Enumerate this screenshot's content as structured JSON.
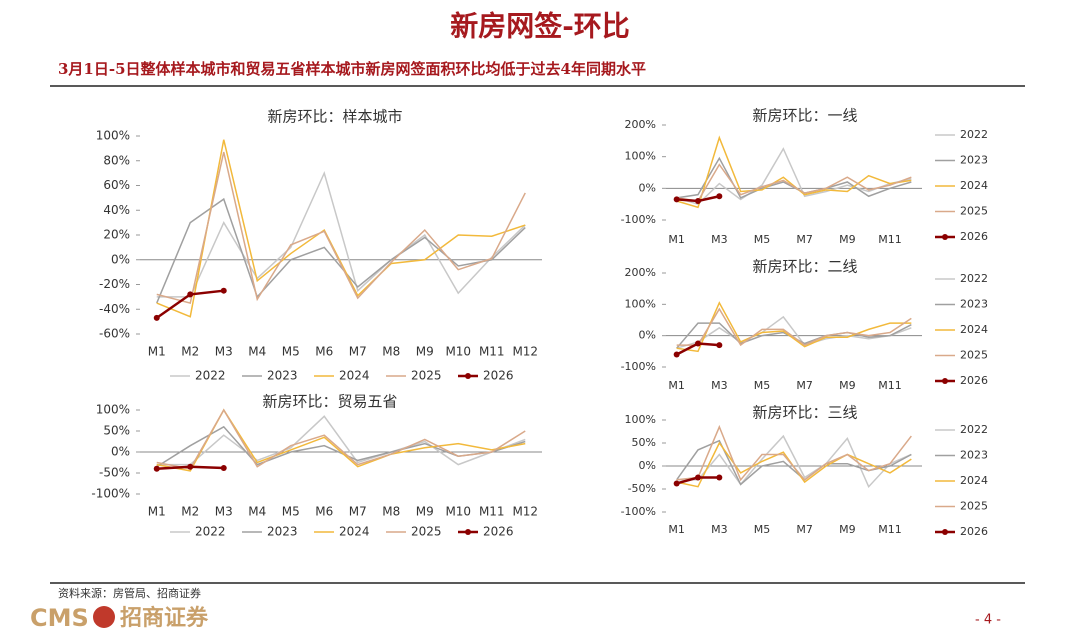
{
  "header": {
    "title": "新房网签-环比",
    "subtitle": "3月1日-5日整体样本城市和贸易五省样本城市新房网签面积环比均低于过去4年同期水平"
  },
  "footer": {
    "source": "资料来源：房管局、招商证券",
    "logo_text": "CMS",
    "logo_name": "招商证券",
    "page": "- 4 -"
  },
  "chart_data": [
    {
      "type": "line",
      "title": "新房环比：样本城市",
      "legend": "bottom",
      "categories": [
        "M1",
        "M2",
        "M3",
        "M4",
        "M5",
        "M6",
        "M7",
        "M8",
        "M9",
        "M10",
        "M11",
        "M12"
      ],
      "ylim": [
        -60,
        100
      ],
      "yticks": [
        {
          "value": -60,
          "label": "-60%"
        },
        {
          "value": -40,
          "label": "-40%"
        },
        {
          "value": -20,
          "label": "-20%"
        },
        {
          "value": 0,
          "label": "0%"
        },
        {
          "value": 20,
          "label": "20%"
        },
        {
          "value": 40,
          "label": "40%"
        },
        {
          "value": 60,
          "label": "60%"
        },
        {
          "value": 80,
          "label": "80%"
        },
        {
          "value": 100,
          "label": "100%"
        }
      ],
      "series": [
        {
          "name": "2022",
          "color": "#c8c8c8",
          "values": [
            -30,
            -30,
            30,
            -15,
            10,
            70,
            -25,
            0,
            20,
            -27,
            2,
            28
          ]
        },
        {
          "name": "2023",
          "color": "#a0a0a0",
          "values": [
            -35,
            30,
            49,
            -30,
            0,
            10,
            -22,
            0,
            18,
            -5,
            0,
            26
          ]
        },
        {
          "name": "2024",
          "color": "#f2b93b",
          "values": [
            -35,
            -46,
            97,
            -17,
            5,
            24,
            -29,
            -3,
            0,
            20,
            19,
            28
          ]
        },
        {
          "name": "2025",
          "color": "#d9a98a",
          "values": [
            -28,
            -35,
            87,
            -32,
            12,
            23,
            -31,
            -2,
            24,
            -8,
            1,
            54
          ]
        },
        {
          "name": "2026",
          "color": "#8b0000",
          "values": [
            -47,
            -28,
            -25,
            null,
            null,
            null,
            null,
            null,
            null,
            null,
            null,
            null
          ]
        }
      ]
    },
    {
      "type": "line",
      "title": "新房环比：一线",
      "legend": "right",
      "categories": [
        "M1",
        null,
        "M3",
        null,
        "M5",
        null,
        "M7",
        null,
        "M9",
        null,
        "M11",
        null
      ],
      "ylim": [
        -100,
        200
      ],
      "yticks": [
        {
          "value": -100,
          "label": "-100%"
        },
        {
          "value": 0,
          "label": "0%"
        },
        {
          "value": 100,
          "label": "100%"
        },
        {
          "value": 200,
          "label": "200%"
        }
      ],
      "series": [
        {
          "name": "2022",
          "color": "#c8c8c8",
          "values": [
            -30,
            -50,
            15,
            -35,
            10,
            125,
            -25,
            -10,
            10,
            -10,
            15,
            30
          ]
        },
        {
          "name": "2023",
          "color": "#a0a0a0",
          "values": [
            -30,
            -20,
            95,
            -30,
            0,
            20,
            -15,
            0,
            20,
            -25,
            0,
            20
          ]
        },
        {
          "name": "2024",
          "color": "#f2b93b",
          "values": [
            -40,
            -60,
            160,
            -10,
            -5,
            35,
            -20,
            -5,
            -10,
            40,
            15,
            25
          ]
        },
        {
          "name": "2025",
          "color": "#d9a98a",
          "values": [
            -30,
            -40,
            75,
            -20,
            5,
            25,
            -15,
            0,
            35,
            -5,
            10,
            35
          ]
        },
        {
          "name": "2026",
          "color": "#8b0000",
          "values": [
            -35,
            -40,
            -25,
            null,
            null,
            null,
            null,
            null,
            null,
            null,
            null,
            null
          ]
        }
      ]
    },
    {
      "type": "line",
      "title": "新房环比：二线",
      "legend": "right",
      "categories": [
        "M1",
        null,
        "M3",
        null,
        "M5",
        null,
        "M7",
        null,
        "M9",
        null,
        "M11",
        null
      ],
      "ylim": [
        -100,
        200
      ],
      "yticks": [
        {
          "value": -100,
          "label": "-100%"
        },
        {
          "value": 0,
          "label": "0%"
        },
        {
          "value": 100,
          "label": "100%"
        },
        {
          "value": 200,
          "label": "200%"
        }
      ],
      "series": [
        {
          "name": "2022",
          "color": "#c8c8c8",
          "values": [
            -40,
            -20,
            25,
            -20,
            10,
            60,
            -30,
            -10,
            0,
            -10,
            0,
            25
          ]
        },
        {
          "name": "2023",
          "color": "#a0a0a0",
          "values": [
            -40,
            40,
            40,
            -25,
            0,
            10,
            -25,
            0,
            10,
            -5,
            0,
            35
          ]
        },
        {
          "name": "2024",
          "color": "#f2b93b",
          "values": [
            -40,
            -50,
            105,
            -20,
            10,
            15,
            -35,
            -5,
            -5,
            20,
            40,
            40
          ]
        },
        {
          "name": "2025",
          "color": "#d9a98a",
          "values": [
            -30,
            -30,
            85,
            -30,
            20,
            20,
            -30,
            0,
            10,
            0,
            10,
            55
          ]
        },
        {
          "name": "2026",
          "color": "#8b0000",
          "values": [
            -60,
            -25,
            -30,
            null,
            null,
            null,
            null,
            null,
            null,
            null,
            null,
            null
          ]
        }
      ]
    },
    {
      "type": "line",
      "title": "新房环比：贸易五省",
      "legend": "bottom",
      "categories": [
        "M1",
        "M2",
        "M3",
        "M4",
        "M5",
        "M6",
        "M7",
        "M8",
        "M9",
        "M10",
        "M11",
        "M12"
      ],
      "ylim": [
        -100,
        100
      ],
      "yticks": [
        {
          "value": -100,
          "label": "-100%"
        },
        {
          "value": -50,
          "label": "-50%"
        },
        {
          "value": 0,
          "label": "0%"
        },
        {
          "value": 50,
          "label": "50%"
        },
        {
          "value": 100,
          "label": "100%"
        }
      ],
      "series": [
        {
          "name": "2022",
          "color": "#c8c8c8",
          "values": [
            -30,
            -30,
            40,
            -20,
            10,
            85,
            -25,
            0,
            25,
            -30,
            0,
            30
          ]
        },
        {
          "name": "2023",
          "color": "#a0a0a0",
          "values": [
            -35,
            15,
            60,
            -30,
            0,
            15,
            -20,
            0,
            20,
            -10,
            0,
            25
          ]
        },
        {
          "name": "2024",
          "color": "#f2b93b",
          "values": [
            -30,
            -45,
            100,
            -25,
            5,
            35,
            -35,
            -5,
            10,
            20,
            5,
            20
          ]
        },
        {
          "name": "2025",
          "color": "#d9a98a",
          "values": [
            -25,
            -40,
            100,
            -35,
            15,
            40,
            -30,
            -5,
            30,
            -10,
            0,
            50
          ]
        },
        {
          "name": "2026",
          "color": "#8b0000",
          "values": [
            -40,
            -35,
            -38,
            null,
            null,
            null,
            null,
            null,
            null,
            null,
            null,
            null
          ]
        }
      ]
    },
    {
      "type": "line",
      "title": "新房环比：三线",
      "legend": "right",
      "categories": [
        "M1",
        null,
        "M3",
        null,
        "M5",
        null,
        "M7",
        null,
        "M9",
        null,
        "M11",
        null
      ],
      "ylim": [
        -100,
        100
      ],
      "yticks": [
        {
          "value": -100,
          "label": "-100%"
        },
        {
          "value": -50,
          "label": "-50%"
        },
        {
          "value": 0,
          "label": "0%"
        },
        {
          "value": 50,
          "label": "50%"
        },
        {
          "value": 100,
          "label": "100%"
        }
      ],
      "series": [
        {
          "name": "2022",
          "color": "#c8c8c8",
          "values": [
            -30,
            -30,
            25,
            -40,
            15,
            65,
            -25,
            5,
            60,
            -45,
            5,
            25
          ]
        },
        {
          "name": "2023",
          "color": "#a0a0a0",
          "values": [
            -30,
            35,
            55,
            -40,
            0,
            10,
            -30,
            5,
            5,
            -10,
            0,
            25
          ]
        },
        {
          "name": "2024",
          "color": "#f2b93b",
          "values": [
            -35,
            -45,
            50,
            -15,
            10,
            30,
            -35,
            0,
            25,
            5,
            -15,
            15
          ]
        },
        {
          "name": "2025",
          "color": "#d9a98a",
          "values": [
            -30,
            -25,
            85,
            -30,
            25,
            25,
            -30,
            5,
            25,
            -10,
            5,
            65
          ]
        },
        {
          "name": "2026",
          "color": "#8b0000",
          "values": [
            -38,
            -25,
            -25,
            null,
            null,
            null,
            null,
            null,
            null,
            null,
            null,
            null
          ]
        }
      ]
    }
  ]
}
